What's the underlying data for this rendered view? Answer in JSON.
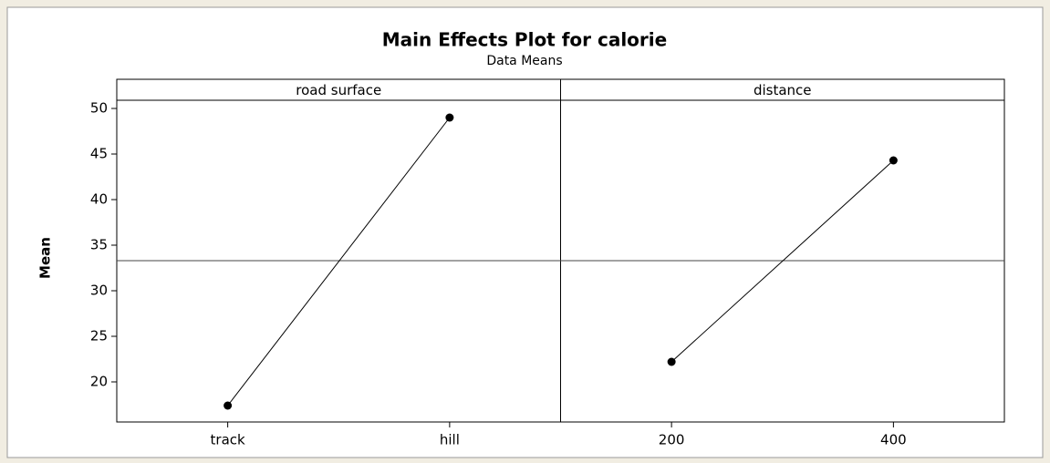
{
  "chart_data": {
    "type": "line",
    "title": "Main Effects Plot for calorie",
    "subtitle": "Data Means",
    "ylabel": "Mean",
    "panels": [
      {
        "name": "road surface",
        "categories": [
          "track",
          "hill"
        ],
        "values": [
          17.4,
          49.0
        ]
      },
      {
        "name": "distance",
        "categories": [
          "200",
          "400"
        ],
        "values": [
          22.2,
          44.3
        ]
      }
    ],
    "reference_line": 33.3,
    "color": "#000000",
    "ylim": [
      15.6,
      50.9
    ],
    "yticks": [
      20,
      25,
      30,
      35,
      40,
      45,
      50
    ]
  }
}
